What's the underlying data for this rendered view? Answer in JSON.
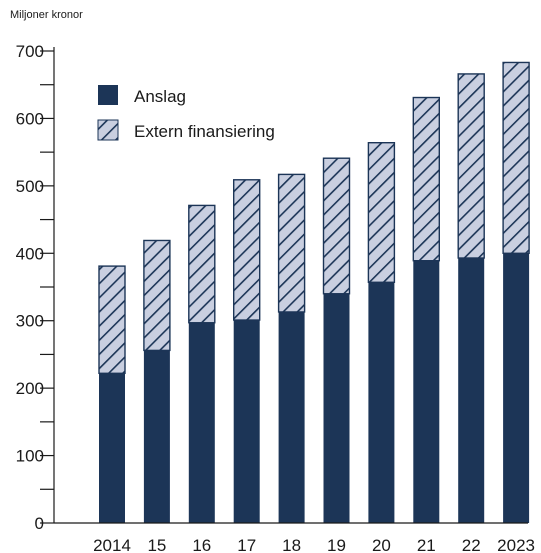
{
  "colors": {
    "funding": "#1c3557",
    "external_fill": "#c9cfe0",
    "external_hatch": "#1c3557",
    "axis": "#1a1a1a"
  },
  "chart_data": {
    "type": "bar",
    "stacked": true,
    "unit_label": "Miljoner kronor",
    "categories": [
      "2014",
      "15",
      "16",
      "17",
      "18",
      "19",
      "20",
      "21",
      "22",
      "2023"
    ],
    "series": [
      {
        "name": "Anslag",
        "values": [
          222,
          256,
          297,
          301,
          313,
          340,
          357,
          389,
          393,
          400
        ]
      },
      {
        "name": "Extern finansiering",
        "values": [
          159,
          163,
          174,
          208,
          204,
          201,
          207,
          242,
          273,
          283
        ]
      }
    ],
    "ylim": [
      0,
      700
    ],
    "yticks": [
      0,
      100,
      200,
      300,
      400,
      500,
      600,
      700
    ],
    "grid": false,
    "legend_position": "top-left"
  }
}
